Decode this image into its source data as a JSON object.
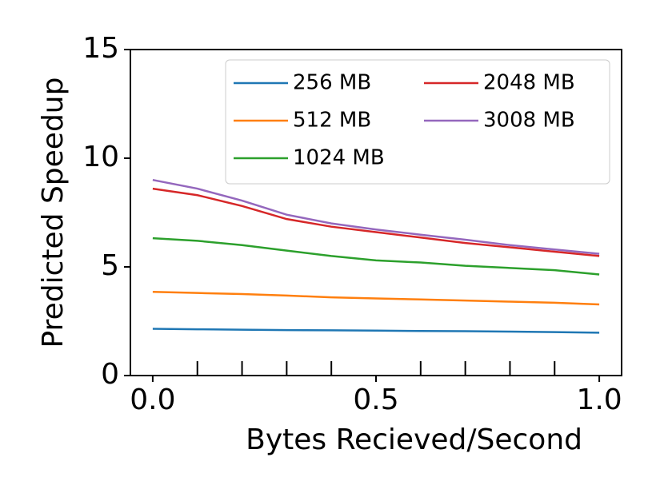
{
  "chart_data": {
    "type": "line",
    "xlabel": "Bytes Recieved/Second",
    "ylabel": "Predicted Speedup",
    "x": [
      0.0,
      0.1,
      0.2,
      0.3,
      0.4,
      0.5,
      0.6,
      0.7,
      0.8,
      0.9,
      1.0
    ],
    "series": [
      {
        "name": "256 MB",
        "color": "#1f77b4",
        "values": [
          2.15,
          2.13,
          2.11,
          2.09,
          2.08,
          2.07,
          2.05,
          2.04,
          2.02,
          2.0,
          1.97
        ]
      },
      {
        "name": "512 MB",
        "color": "#ff7f0e",
        "values": [
          3.85,
          3.8,
          3.75,
          3.68,
          3.6,
          3.55,
          3.5,
          3.45,
          3.4,
          3.35,
          3.27
        ]
      },
      {
        "name": "1024 MB",
        "color": "#2ca02c",
        "values": [
          6.32,
          6.2,
          6.0,
          5.75,
          5.5,
          5.3,
          5.2,
          5.05,
          4.95,
          4.85,
          4.65
        ]
      },
      {
        "name": "2048 MB",
        "color": "#d62728",
        "values": [
          8.6,
          8.3,
          7.8,
          7.2,
          6.85,
          6.6,
          6.35,
          6.1,
          5.9,
          5.7,
          5.5
        ]
      },
      {
        "name": "3008 MB",
        "color": "#9467bd",
        "values": [
          9.0,
          8.6,
          8.05,
          7.4,
          7.0,
          6.72,
          6.48,
          6.25,
          6.0,
          5.8,
          5.6
        ]
      }
    ],
    "xlim": [
      -0.05,
      1.05
    ],
    "ylim": [
      0,
      15
    ],
    "xticks": [
      {
        "value": 0,
        "label": "0.0"
      },
      {
        "value": 0.5,
        "label": "0.5"
      },
      {
        "value": 1,
        "label": "1.0"
      }
    ],
    "xminorticks": [
      0.1,
      0.2,
      0.3,
      0.4,
      0.6,
      0.7,
      0.8,
      0.9
    ],
    "yticks": [
      0,
      5,
      10,
      15
    ],
    "legend": "upper right",
    "legend_columns": 2
  }
}
